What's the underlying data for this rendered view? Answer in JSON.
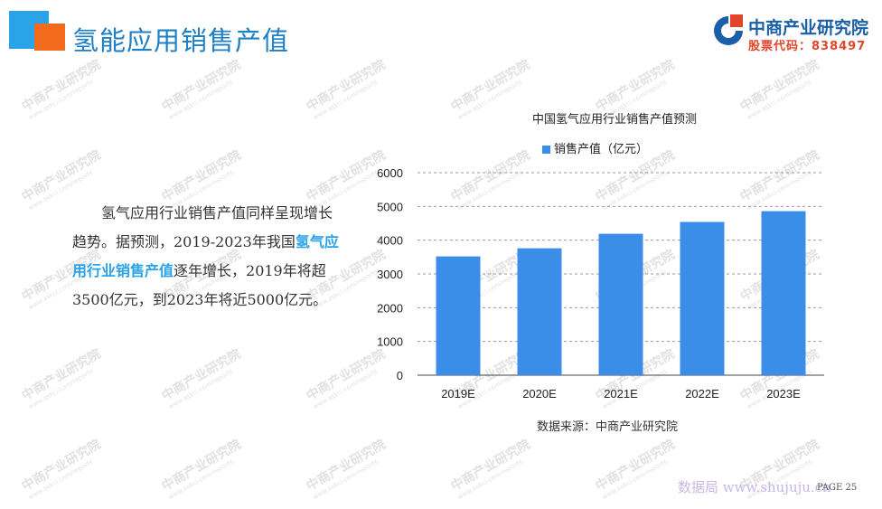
{
  "slide": {
    "title": "氢能应用销售产值",
    "page": "PAGE 25"
  },
  "brand": {
    "name": "中商产业研究院",
    "code": "股票代码：838497"
  },
  "body": {
    "text_before": "氢气应用行业销售产值同样呈现增长趋势。据预测，2019-2023年我国",
    "highlight": "氢气应用行业销售产值",
    "text_after": "逐年增长，2019年将超3500亿元，到2023年将近5000亿元。"
  },
  "watermark": {
    "cn": "中商产业研究院",
    "url": "www.askci.com/reports",
    "site": "数据局 www.shujuju.cn"
  },
  "colors": {
    "bar": "#3b8ee8",
    "title": "#1d7fc5",
    "accent_blue": "#2aa3e8",
    "accent_orange": "#f26a1b"
  },
  "chart_data": {
    "type": "bar",
    "title": "中国氢气应用行业销售产值预测",
    "categories": [
      "2019E",
      "2020E",
      "2021E",
      "2022E",
      "2023E"
    ],
    "series": [
      {
        "name": "销售产值（亿元）",
        "values": [
          3520,
          3760,
          4190,
          4540,
          4860
        ]
      }
    ],
    "ylim": [
      0,
      6000
    ],
    "yticks": [
      "0",
      "1000",
      "2000",
      "3000",
      "4000",
      "5000",
      "6000"
    ],
    "grid": true,
    "legend_position": "top",
    "source": "数据来源：中商产业研究院"
  }
}
